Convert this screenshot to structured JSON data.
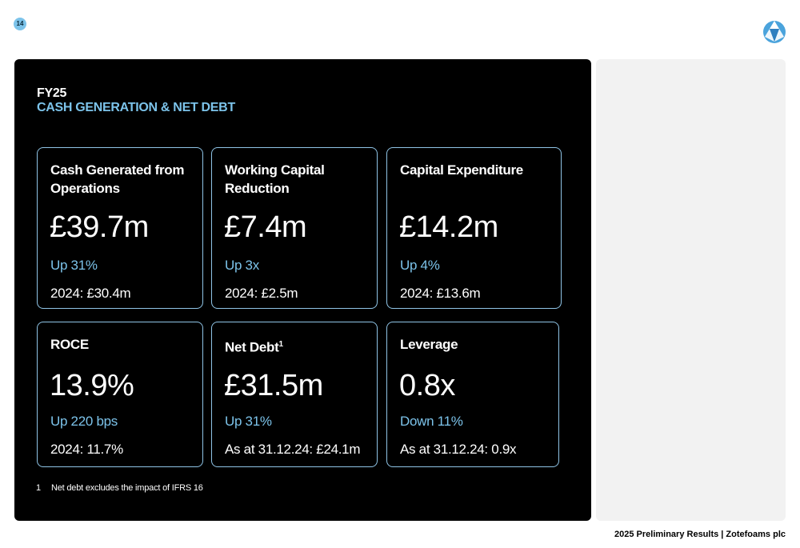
{
  "page_number": "14",
  "header": {
    "kicker": "FY25",
    "title": "CASH GENERATION & NET DEBT"
  },
  "cards": [
    {
      "label": "Cash Generated from Operations",
      "value": "£39.7m",
      "change": "Up 31%",
      "prior": "2024: £30.4m"
    },
    {
      "label": "Working Capital Reduction",
      "value": "£7.4m",
      "change": "Up 3x",
      "prior": "2024: £2.5m"
    },
    {
      "label": "Capital Expenditure",
      "value": "£14.2m",
      "change": "Up 4%",
      "prior": "2024: £13.6m"
    },
    {
      "label": "ROCE",
      "value": "13.9%",
      "change": "Up 220 bps",
      "prior": "2024: 11.7%"
    },
    {
      "label": "Net Debt",
      "sup": "1",
      "value": "£31.5m",
      "change": "Up 31%",
      "prior": "As at 31.12.24: £24.1m"
    },
    {
      "label": "Leverage",
      "value": "0.8x",
      "change": "Down 11%",
      "prior": "As at 31.12.24: 0.9x"
    }
  ],
  "footnote": {
    "number": "1",
    "text": "Net debt excludes the impact of IFRS 16"
  },
  "footer": {
    "text": "2025 Preliminary Results | Zotefoams plc"
  },
  "colors": {
    "accent": "#7cc3ea",
    "panel": "#000000",
    "card_border": "#8fc4e6"
  }
}
